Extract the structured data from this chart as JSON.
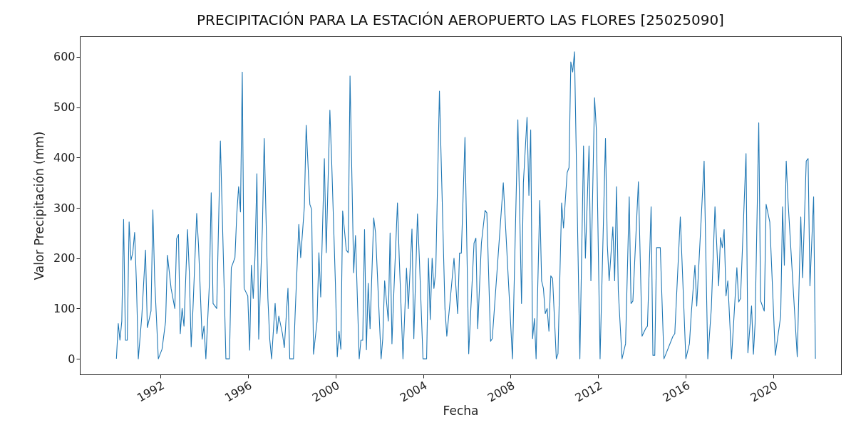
{
  "chart_data": {
    "type": "line",
    "title": "PRECIPITACIÓN PARA LA ESTACIÓN AEROPUERTO LAS FLORES [25025090]",
    "xlabel": "Fecha",
    "ylabel": "Valor Precipitación (mm)",
    "x": [
      "1990-01",
      "1990-02",
      "1990-03",
      "1990-04",
      "1990-05",
      "1990-06",
      "1990-07",
      "1990-08",
      "1990-09",
      "1990-10",
      "1990-11",
      "1990-12",
      "1991-01",
      "1991-03",
      "1991-05",
      "1991-06",
      "1991-08",
      "1991-09",
      "1991-10",
      "1991-12",
      "1992-02",
      "1992-04",
      "1992-05",
      "1992-07",
      "1992-09",
      "1992-10",
      "1992-11",
      "1992-12",
      "1993-01",
      "1993-02",
      "1993-04",
      "1993-05",
      "1993-06",
      "1993-07",
      "1993-09",
      "1993-10",
      "1993-12",
      "1994-01",
      "1994-02",
      "1994-04",
      "1994-05",
      "1994-06",
      "1994-08",
      "1994-10",
      "1994-12",
      "1995-01",
      "1995-03",
      "1995-04",
      "1995-06",
      "1995-07",
      "1995-08",
      "1995-09",
      "1995-10",
      "1995-11",
      "1996-01",
      "1996-02",
      "1996-03",
      "1996-04",
      "1996-05",
      "1996-06",
      "1996-07",
      "1996-09",
      "1996-10",
      "1996-12",
      "1997-01",
      "1997-02",
      "1997-04",
      "1997-05",
      "1997-06",
      "1997-08",
      "1997-09",
      "1997-11",
      "1997-12",
      "1998-02",
      "1998-03",
      "1998-05",
      "1998-06",
      "1998-08",
      "1998-09",
      "1998-11",
      "1998-12",
      "1999-01",
      "1999-03",
      "1999-04",
      "1999-05",
      "1999-07",
      "1999-08",
      "1999-10",
      "1999-11",
      "2000-01",
      "2000-02",
      "2000-03",
      "2000-04",
      "2000-05",
      "2000-07",
      "2000-08",
      "2000-09",
      "2000-11",
      "2000-12",
      "2001-02",
      "2001-03",
      "2001-04",
      "2001-05",
      "2001-06",
      "2001-07",
      "2001-08",
      "2001-10",
      "2001-11",
      "2002-02",
      "2002-03",
      "2002-04",
      "2002-06",
      "2002-07",
      "2002-08",
      "2002-09",
      "2002-11",
      "2002-12",
      "2003-02",
      "2003-04",
      "2003-05",
      "2003-07",
      "2003-08",
      "2003-10",
      "2003-11",
      "2004-01",
      "2004-03",
      "2004-04",
      "2004-05",
      "2004-06",
      "2004-07",
      "2004-08",
      "2004-10",
      "2005-01",
      "2005-02",
      "2005-04",
      "2005-06",
      "2005-08",
      "2005-09",
      "2005-10",
      "2005-12",
      "2006-02",
      "2006-03",
      "2006-05",
      "2006-06",
      "2006-07",
      "2006-09",
      "2006-11",
      "2006-12",
      "2007-02",
      "2007-03",
      "2007-09",
      "2008-02",
      "2008-05",
      "2008-07",
      "2008-08",
      "2008-10",
      "2008-11",
      "2008-12",
      "2009-01",
      "2009-02",
      "2009-03",
      "2009-05",
      "2009-06",
      "2009-07",
      "2009-08",
      "2009-09",
      "2009-10",
      "2009-11",
      "2009-12",
      "2010-02",
      "2010-03",
      "2010-05",
      "2010-06",
      "2010-08",
      "2010-09",
      "2010-10",
      "2010-11",
      "2010-12",
      "2011-03",
      "2011-05",
      "2011-06",
      "2011-08",
      "2011-09",
      "2011-11",
      "2011-12",
      "2012-02",
      "2012-05",
      "2012-06",
      "2012-07",
      "2012-09",
      "2012-10",
      "2012-11",
      "2012-12",
      "2013-02",
      "2013-04",
      "2013-06",
      "2013-07",
      "2013-08",
      "2013-11",
      "2014-01",
      "2014-03",
      "2014-04",
      "2014-06",
      "2014-07",
      "2014-08",
      "2014-09",
      "2014-11",
      "2015-01",
      "2015-06",
      "2015-07",
      "2015-10",
      "2016-01",
      "2016-03",
      "2016-04",
      "2016-06",
      "2016-07",
      "2016-11",
      "2017-01",
      "2017-03",
      "2017-05",
      "2017-07",
      "2017-08",
      "2017-09",
      "2017-10",
      "2017-11",
      "2017-12",
      "2018-02",
      "2018-05",
      "2018-06",
      "2018-07",
      "2018-10",
      "2018-11",
      "2019-01",
      "2019-02",
      "2019-03",
      "2019-05",
      "2019-06",
      "2019-08",
      "2019-09",
      "2019-11",
      "2020-02",
      "2020-05",
      "2020-06",
      "2020-07",
      "2020-08",
      "2020-09",
      "2021-02",
      "2021-04",
      "2021-05",
      "2021-07",
      "2021-08",
      "2021-09",
      "2021-11",
      "2021-12"
    ],
    "series": [
      {
        "color": "#1f77b4",
        "values": [
          0,
          70,
          37,
          75,
          277,
          37,
          37,
          272,
          196,
          211,
          251,
          150,
          0,
          85,
          216,
          62,
          95,
          296,
          158,
          0,
          19,
          75,
          206,
          140,
          100,
          239,
          247,
          50,
          100,
          65,
          257,
          171,
          24,
          100,
          289,
          226,
          39,
          65,
          0,
          150,
          330,
          110,
          100,
          433,
          150,
          0,
          0,
          181,
          201,
          287,
          342,
          292,
          570,
          140,
          125,
          17,
          186,
          120,
          206,
          368,
          39,
          262,
          438,
          120,
          39,
          0,
          110,
          50,
          85,
          50,
          22,
          140,
          0,
          0,
          90,
          267,
          201,
          302,
          464,
          307,
          297,
          9,
          75,
          211,
          123,
          398,
          211,
          494,
          388,
          150,
          4,
          55,
          19,
          294,
          216,
          211,
          562,
          171,
          245,
          0,
          37,
          37,
          257,
          18,
          150,
          60,
          280,
          250,
          0,
          40,
          155,
          75,
          250,
          30,
          130,
          310,
          200,
          0,
          180,
          100,
          258,
          40,
          288,
          200,
          0,
          0,
          200,
          78,
          200,
          140,
          175,
          532,
          100,
          45,
          120,
          200,
          90,
          210,
          210,
          440,
          10,
          80,
          230,
          240,
          60,
          230,
          295,
          290,
          35,
          40,
          350,
          0,
          475,
          110,
          350,
          480,
          325,
          455,
          40,
          80,
          0,
          315,
          155,
          140,
          90,
          100,
          55,
          165,
          160,
          0,
          10,
          310,
          260,
          370,
          380,
          590,
          570,
          610,
          0,
          423,
          200,
          423,
          155,
          519,
          455,
          0,
          438,
          226,
          155,
          262,
          155,
          342,
          135,
          0,
          30,
          322,
          110,
          115,
          352,
          45,
          60,
          65,
          302,
          7,
          7,
          221,
          221,
          0,
          45,
          50,
          282,
          0,
          30,
          90,
          186,
          105,
          393,
          0,
          100,
          302,
          145,
          241,
          221,
          257,
          125,
          155,
          0,
          181,
          113,
          120,
          408,
          12,
          105,
          9,
          70,
          469,
          115,
          95,
          307,
          272,
          7,
          85,
          302,
          186,
          393,
          312,
          4,
          282,
          161,
          393,
          398,
          145,
          322,
          0
        ]
      }
    ],
    "xlim": [
      "1988-05",
      "2023-02"
    ],
    "xticks": [
      "1992",
      "1996",
      "2000",
      "2004",
      "2008",
      "2012",
      "2016",
      "2020"
    ],
    "ylim": [
      -31,
      641
    ],
    "yticks": [
      0,
      100,
      200,
      300,
      400,
      500,
      600
    ],
    "grid": false
  }
}
